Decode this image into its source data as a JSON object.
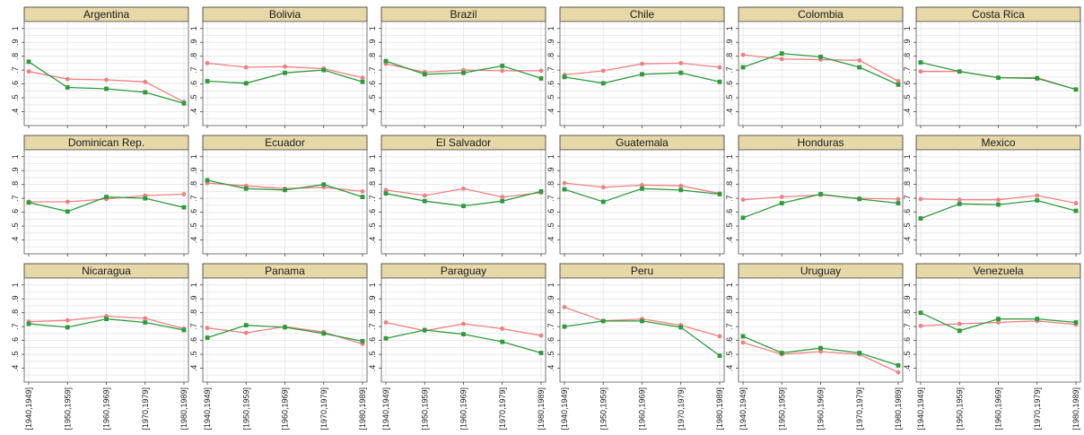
{
  "chart_data": {
    "type": "line",
    "layout": "small-multiples 3x6",
    "ylim": [
      0.3,
      1.05
    ],
    "y_ticks": [
      ".4",
      ".5",
      ".6",
      ".7",
      ".8",
      ".9",
      "1"
    ],
    "x_ticks": [
      "[1940,1949]",
      "[1950,1959]",
      "[1960,1969]",
      "[1970,1979]",
      "[1980,1989]"
    ],
    "grid": true,
    "series_colors": [
      "#f08080",
      "#2e9a3c"
    ],
    "strip_color": "#e7d8a8",
    "panels": [
      {
        "title": "Argentina",
        "series": [
          {
            "values": [
              0.69,
              0.635,
              0.63,
              0.615,
              0.47
            ]
          },
          {
            "values": [
              0.76,
              0.575,
              0.565,
              0.54,
              0.46
            ]
          }
        ]
      },
      {
        "title": "Bolivia",
        "series": [
          {
            "values": [
              0.75,
              0.72,
              0.725,
              0.71,
              0.645
            ]
          },
          {
            "values": [
              0.62,
              0.605,
              0.68,
              0.7,
              0.615
            ]
          }
        ]
      },
      {
        "title": "Brazil",
        "series": [
          {
            "values": [
              0.745,
              0.685,
              0.7,
              0.695,
              0.695
            ]
          },
          {
            "values": [
              0.765,
              0.67,
              0.68,
              0.73,
              0.64
            ]
          }
        ]
      },
      {
        "title": "Chile",
        "series": [
          {
            "values": [
              0.665,
              0.695,
              0.745,
              0.75,
              0.72
            ]
          },
          {
            "values": [
              0.65,
              0.605,
              0.67,
              0.68,
              0.615
            ]
          }
        ]
      },
      {
        "title": "Colombia",
        "series": [
          {
            "values": [
              0.81,
              0.78,
              0.775,
              0.77,
              0.62
            ]
          },
          {
            "values": [
              0.72,
              0.82,
              0.795,
              0.72,
              0.595
            ]
          }
        ]
      },
      {
        "title": "Costa Rica",
        "series": [
          {
            "values": [
              0.69,
              0.69,
              0.645,
              0.645,
              0.56
            ]
          },
          {
            "values": [
              0.755,
              0.69,
              0.645,
              0.64,
              0.56
            ]
          }
        ]
      },
      {
        "title": "Dominican Rep.",
        "series": [
          {
            "values": [
              0.675,
              0.675,
              0.695,
              0.72,
              0.73
            ]
          },
          {
            "values": [
              0.67,
              0.605,
              0.71,
              0.7,
              0.635
            ]
          }
        ]
      },
      {
        "title": "Ecuador",
        "series": [
          {
            "values": [
              0.81,
              0.79,
              0.77,
              0.78,
              0.75
            ]
          },
          {
            "values": [
              0.83,
              0.77,
              0.76,
              0.8,
              0.71
            ]
          }
        ]
      },
      {
        "title": "El Salvador",
        "series": [
          {
            "values": [
              0.76,
              0.72,
              0.77,
              0.71,
              0.74
            ]
          },
          {
            "values": [
              0.735,
              0.68,
              0.645,
              0.68,
              0.75
            ]
          }
        ]
      },
      {
        "title": "Guatemala",
        "series": [
          {
            "values": [
              0.81,
              0.78,
              0.795,
              0.79,
              0.735
            ]
          },
          {
            "values": [
              0.765,
              0.675,
              0.77,
              0.76,
              0.73
            ]
          }
        ]
      },
      {
        "title": "Honduras",
        "series": [
          {
            "values": [
              0.69,
              0.71,
              0.725,
              0.7,
              0.695
            ]
          },
          {
            "values": [
              0.56,
              0.665,
              0.73,
              0.695,
              0.665
            ]
          }
        ]
      },
      {
        "title": "Mexico",
        "series": [
          {
            "values": [
              0.695,
              0.69,
              0.69,
              0.72,
              0.665
            ]
          },
          {
            "values": [
              0.555,
              0.66,
              0.655,
              0.685,
              0.61
            ]
          }
        ]
      },
      {
        "title": "Nicaragua",
        "series": [
          {
            "values": [
              0.735,
              0.745,
              0.775,
              0.76,
              0.685
            ]
          },
          {
            "values": [
              0.72,
              0.695,
              0.755,
              0.73,
              0.675
            ]
          }
        ]
      },
      {
        "title": "Panama",
        "series": [
          {
            "values": [
              0.69,
              0.655,
              0.7,
              0.66,
              0.575
            ]
          },
          {
            "values": [
              0.62,
              0.71,
              0.695,
              0.65,
              0.595
            ]
          }
        ]
      },
      {
        "title": "Paraguay",
        "series": [
          {
            "values": [
              0.73,
              0.67,
              0.72,
              0.685,
              0.635
            ]
          },
          {
            "values": [
              0.615,
              0.675,
              0.645,
              0.59,
              0.51
            ]
          }
        ]
      },
      {
        "title": "Peru",
        "series": [
          {
            "values": [
              0.84,
              0.74,
              0.755,
              0.71,
              0.63
            ]
          },
          {
            "values": [
              0.7,
              0.74,
              0.74,
              0.695,
              0.49
            ]
          }
        ]
      },
      {
        "title": "Uruguay",
        "series": [
          {
            "values": [
              0.585,
              0.5,
              0.52,
              0.5,
              0.37
            ]
          },
          {
            "values": [
              0.63,
              0.51,
              0.545,
              0.51,
              0.42
            ]
          }
        ]
      },
      {
        "title": "Venezuela",
        "series": [
          {
            "values": [
              0.705,
              0.72,
              0.73,
              0.74,
              0.715
            ]
          },
          {
            "values": [
              0.8,
              0.67,
              0.755,
              0.755,
              0.73
            ]
          }
        ]
      }
    ]
  }
}
